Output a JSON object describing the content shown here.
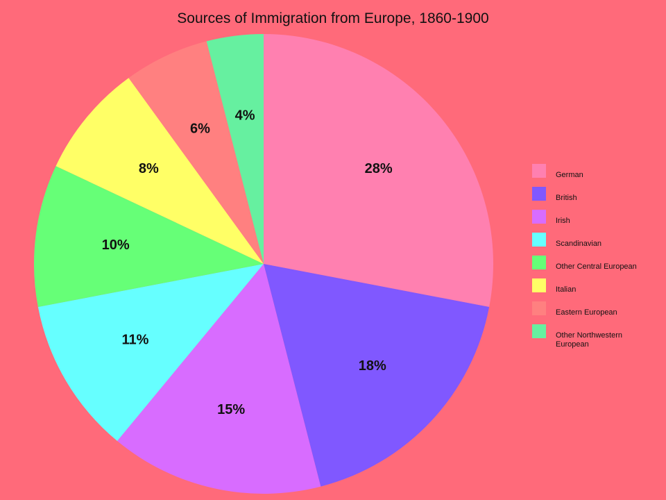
{
  "chart_data": {
    "type": "pie",
    "title": "Sources of Immigration from Europe, 1860-1900",
    "categories": [
      "German",
      "British",
      "Irish",
      "Scandinavian",
      "Other Central European",
      "Italian",
      "Eastern European",
      "Other Northwestern European"
    ],
    "values": [
      28,
      18,
      15,
      11,
      10,
      8,
      6,
      4
    ],
    "value_labels": [
      "28%",
      "18%",
      "15%",
      "11%",
      "10%",
      "8%",
      "6%",
      "4%"
    ],
    "colors": [
      "#ff80b0",
      "#8058ff",
      "#d86cff",
      "#66ffff",
      "#66ff77",
      "#ffff66",
      "#ff8080",
      "#66f0a0"
    ],
    "start_angle": "12 o'clock",
    "direction": "clockwise",
    "legend_position": "right"
  },
  "background_color": "#ff6a7a"
}
